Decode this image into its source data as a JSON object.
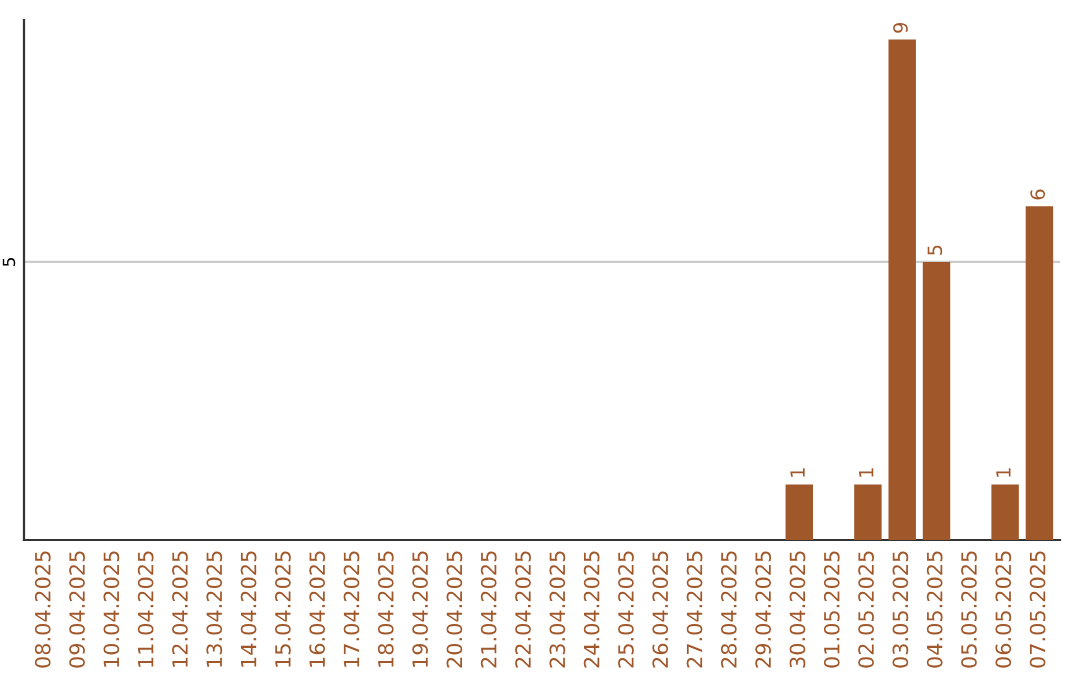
{
  "chart_data": {
    "type": "bar",
    "categories": [
      "08.04.2025",
      "09.04.2025",
      "10.04.2025",
      "11.04.2025",
      "12.04.2025",
      "13.04.2025",
      "14.04.2025",
      "15.04.2025",
      "16.04.2025",
      "17.04.2025",
      "18.04.2025",
      "19.04.2025",
      "20.04.2025",
      "21.04.2025",
      "22.04.2025",
      "23.04.2025",
      "24.04.2025",
      "25.04.2025",
      "26.04.2025",
      "27.04.2025",
      "28.04.2025",
      "29.04.2025",
      "30.04.2025",
      "01.05.2025",
      "02.05.2025",
      "03.05.2025",
      "04.05.2025",
      "05.05.2025",
      "06.05.2025",
      "07.05.2025"
    ],
    "values": [
      null,
      null,
      null,
      null,
      null,
      null,
      null,
      null,
      null,
      null,
      null,
      null,
      null,
      null,
      null,
      null,
      null,
      null,
      null,
      null,
      null,
      null,
      1,
      null,
      1,
      9,
      5,
      null,
      1,
      6
    ],
    "color": "#a0572a",
    "ylim": [
      0,
      9.35
    ],
    "yticks": [
      5
    ],
    "grid": "y",
    "data_labels": true
  }
}
